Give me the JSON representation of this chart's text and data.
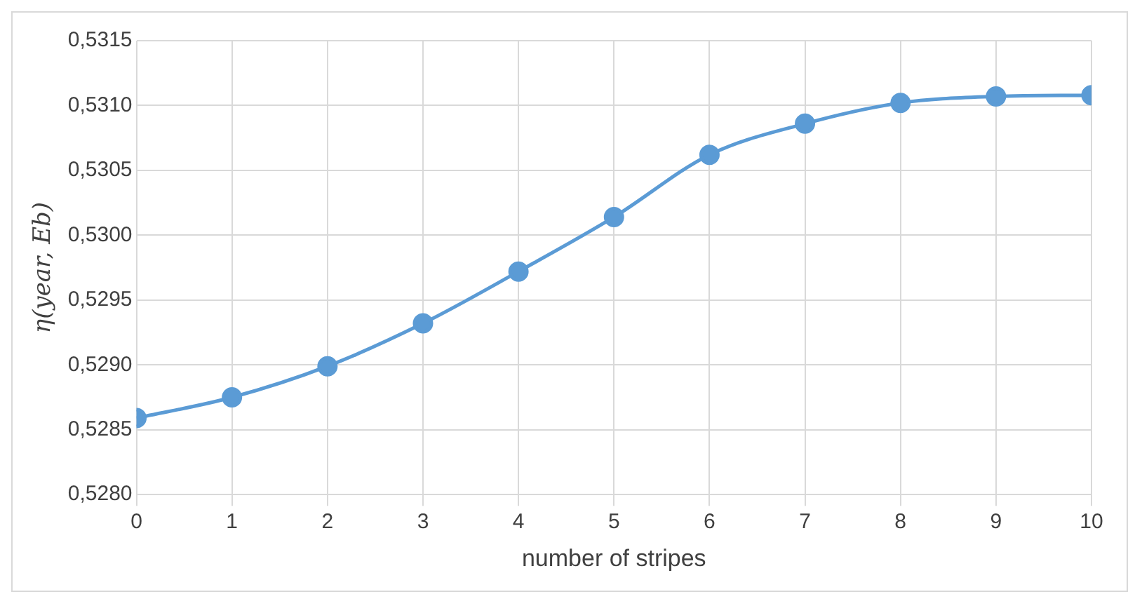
{
  "chart_data": {
    "type": "line",
    "xlabel": "number of stripes",
    "ylabel": "η(year, Eb)",
    "x": [
      0,
      1,
      2,
      3,
      4,
      5,
      6,
      7,
      8,
      9,
      10
    ],
    "series": [
      {
        "color": "#5b9bd5",
        "values": [
          0.52859,
          0.52875,
          0.52899,
          0.52932,
          0.52972,
          0.53014,
          0.53062,
          0.53086,
          0.53102,
          0.53107,
          0.53108
        ]
      }
    ],
    "xlim": [
      0,
      10
    ],
    "xticks": [
      0,
      1,
      2,
      3,
      4,
      5,
      6,
      7,
      8,
      9,
      10
    ],
    "ylim": [
      0.528,
      0.5315
    ],
    "yticks": [
      {
        "value": 0.528,
        "label": "0,5280"
      },
      {
        "value": 0.5285,
        "label": "0,5285"
      },
      {
        "value": 0.529,
        "label": "0,5290"
      },
      {
        "value": 0.5295,
        "label": "0,5295"
      },
      {
        "value": 0.53,
        "label": "0,5300"
      },
      {
        "value": 0.5305,
        "label": "0,5305"
      },
      {
        "value": 0.531,
        "label": "0,5310"
      },
      {
        "value": 0.5315,
        "label": "0,5315"
      }
    ],
    "grid": true,
    "legend": false,
    "marker": "circle",
    "line_style": "solid"
  }
}
